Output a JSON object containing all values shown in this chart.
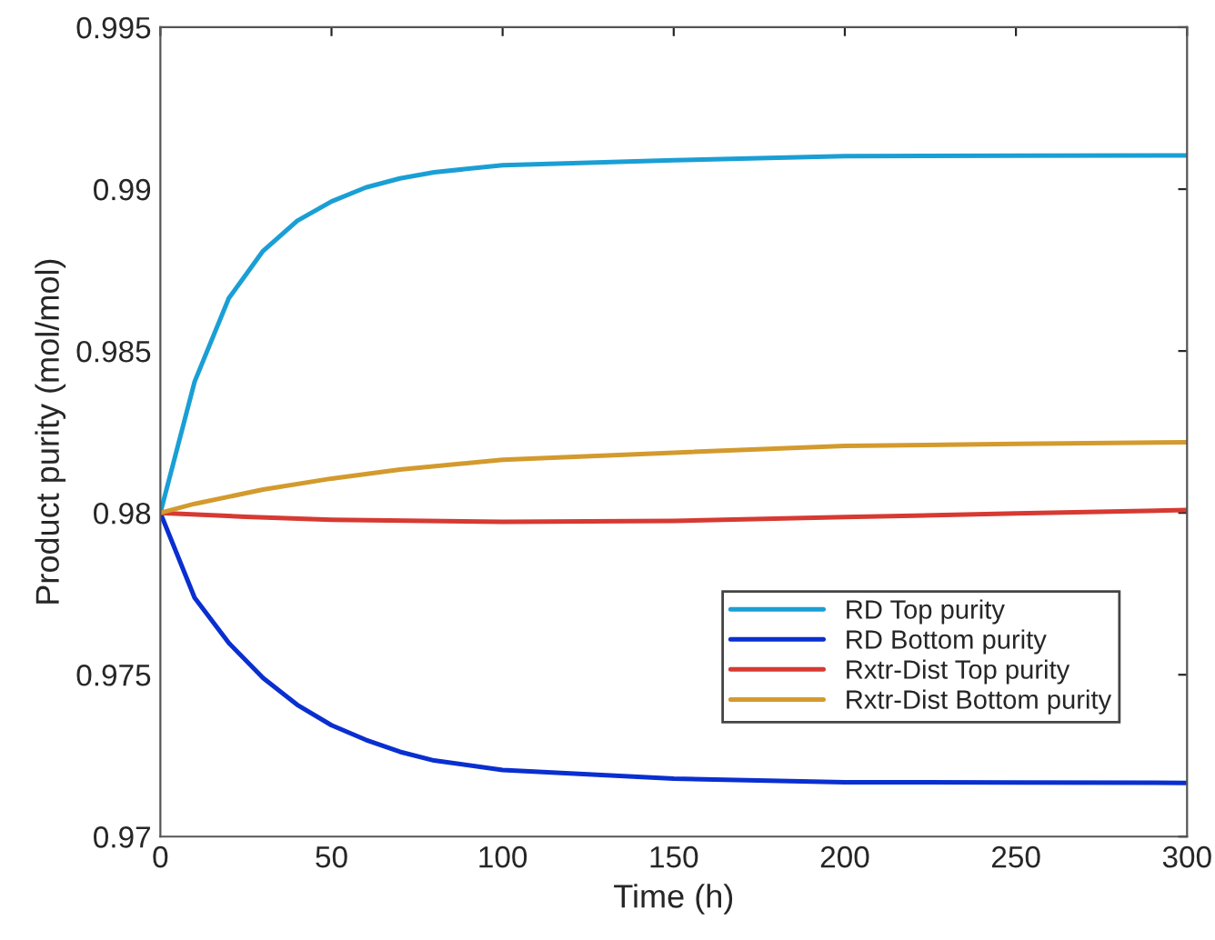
{
  "chart_data": {
    "type": "line",
    "xlabel": "Time (h)",
    "ylabel": "Product purity (mol/mol)",
    "xlim": [
      0,
      300
    ],
    "xticks": [
      0,
      50,
      100,
      150,
      200,
      250,
      300
    ],
    "ylim": [
      0.97,
      0.995
    ],
    "yticks": [
      0.97,
      0.975,
      0.98,
      0.985,
      0.99,
      0.995
    ],
    "grid": false,
    "legend": "bottom right",
    "line_style": "solid",
    "marker": "none",
    "x": [
      0,
      10,
      20,
      30,
      40,
      50,
      60,
      70,
      80,
      100,
      150,
      200,
      250,
      300
    ],
    "series": [
      {
        "name": "RD Top purity",
        "color": "#1a9fd5",
        "values": [
          0.98,
          0.98405,
          0.98663,
          0.98809,
          0.98902,
          0.98962,
          0.99005,
          0.99033,
          0.99052,
          0.99074,
          0.99089,
          0.99102,
          0.99103,
          0.99104
        ]
      },
      {
        "name": "RD Bottom purity",
        "color": "#0a2fd0",
        "values": [
          0.98,
          0.97738,
          0.97598,
          0.9749,
          0.97407,
          0.97344,
          0.97299,
          0.97262,
          0.97235,
          0.97206,
          0.97179,
          0.97168,
          0.97167,
          0.97166
        ]
      },
      {
        "name": "Rxtr-Dist Top purity",
        "color": "#d63a32",
        "x": [
          0,
          25,
          50,
          100,
          150,
          200,
          250,
          300
        ],
        "values": [
          0.98,
          0.97988,
          0.97979,
          0.97972,
          0.97975,
          0.97987,
          0.97998,
          0.98009
        ]
      },
      {
        "name": "Rxtr-Dist Bottom purity",
        "color": "#d39a2d",
        "x": [
          0,
          10,
          20,
          30,
          50,
          70,
          100,
          150,
          200,
          250,
          300
        ],
        "values": [
          0.98,
          0.98028,
          0.9805,
          0.98072,
          0.98106,
          0.98134,
          0.98164,
          0.98186,
          0.98207,
          0.98213,
          0.98218
        ]
      }
    ]
  }
}
